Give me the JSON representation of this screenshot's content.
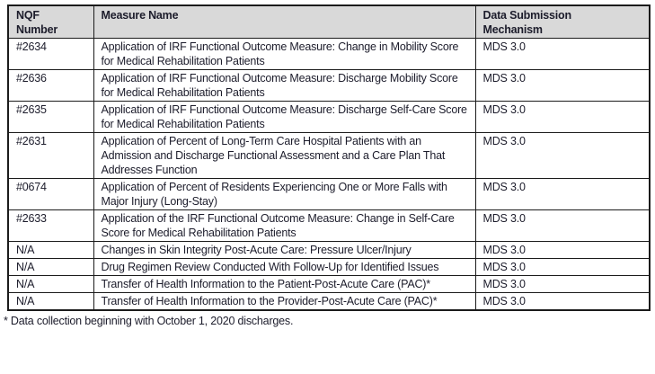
{
  "document": {
    "footnote": "* Data collection beginning with October 1, 2020 discharges."
  },
  "colors": {
    "header_background": "#d9d9d9",
    "border": "#1b1b1b",
    "text": "#1c1c2b"
  },
  "table": {
    "columns": [
      {
        "label": "NQF\nNumber"
      },
      {
        "label": "Measure Name"
      },
      {
        "label": "Data Submission\nMechanism"
      }
    ],
    "rows": [
      {
        "nqf": "#2634",
        "measure": "Application of IRF Functional Outcome Measure: Change in Mobility Score for Medical Rehabilitation Patients",
        "mechanism": "MDS 3.0"
      },
      {
        "nqf": "#2636",
        "measure": "Application of IRF Functional Outcome Measure: Discharge Mobility Score for Medical Rehabilitation Patients",
        "mechanism": "MDS 3.0"
      },
      {
        "nqf": "#2635",
        "measure": "Application of IRF Functional Outcome Measure: Discharge Self-Care Score for Medical Rehabilitation Patients",
        "mechanism": "MDS 3.0"
      },
      {
        "nqf": "#2631",
        "measure": "Application of Percent of Long-Term Care Hospital Patients with an Admission and Discharge Functional Assessment and a Care Plan That Addresses Function",
        "mechanism": "MDS 3.0"
      },
      {
        "nqf": "#0674",
        "measure": "Application of Percent of Residents Experiencing One or More Falls with Major Injury (Long-Stay)",
        "mechanism": "MDS 3.0"
      },
      {
        "nqf": "#2633",
        "measure": "Application of the IRF Functional Outcome Measure: Change in Self-Care Score for Medical Rehabilitation Patients",
        "mechanism": "MDS 3.0"
      },
      {
        "nqf": "N/A",
        "measure": "Changes in Skin Integrity Post-Acute Care: Pressure Ulcer/Injury",
        "mechanism": "MDS 3.0"
      },
      {
        "nqf": "N/A",
        "measure": "Drug Regimen Review Conducted With Follow-Up for Identified Issues",
        "mechanism": "MDS 3.0"
      },
      {
        "nqf": "N/A",
        "measure": "Transfer of Health Information to the Patient-Post-Acute Care (PAC)*",
        "mechanism": "MDS 3.0"
      },
      {
        "nqf": "N/A",
        "measure": "Transfer of Health Information to the Provider-Post-Acute Care (PAC)*",
        "mechanism": "MDS 3.0"
      }
    ]
  }
}
